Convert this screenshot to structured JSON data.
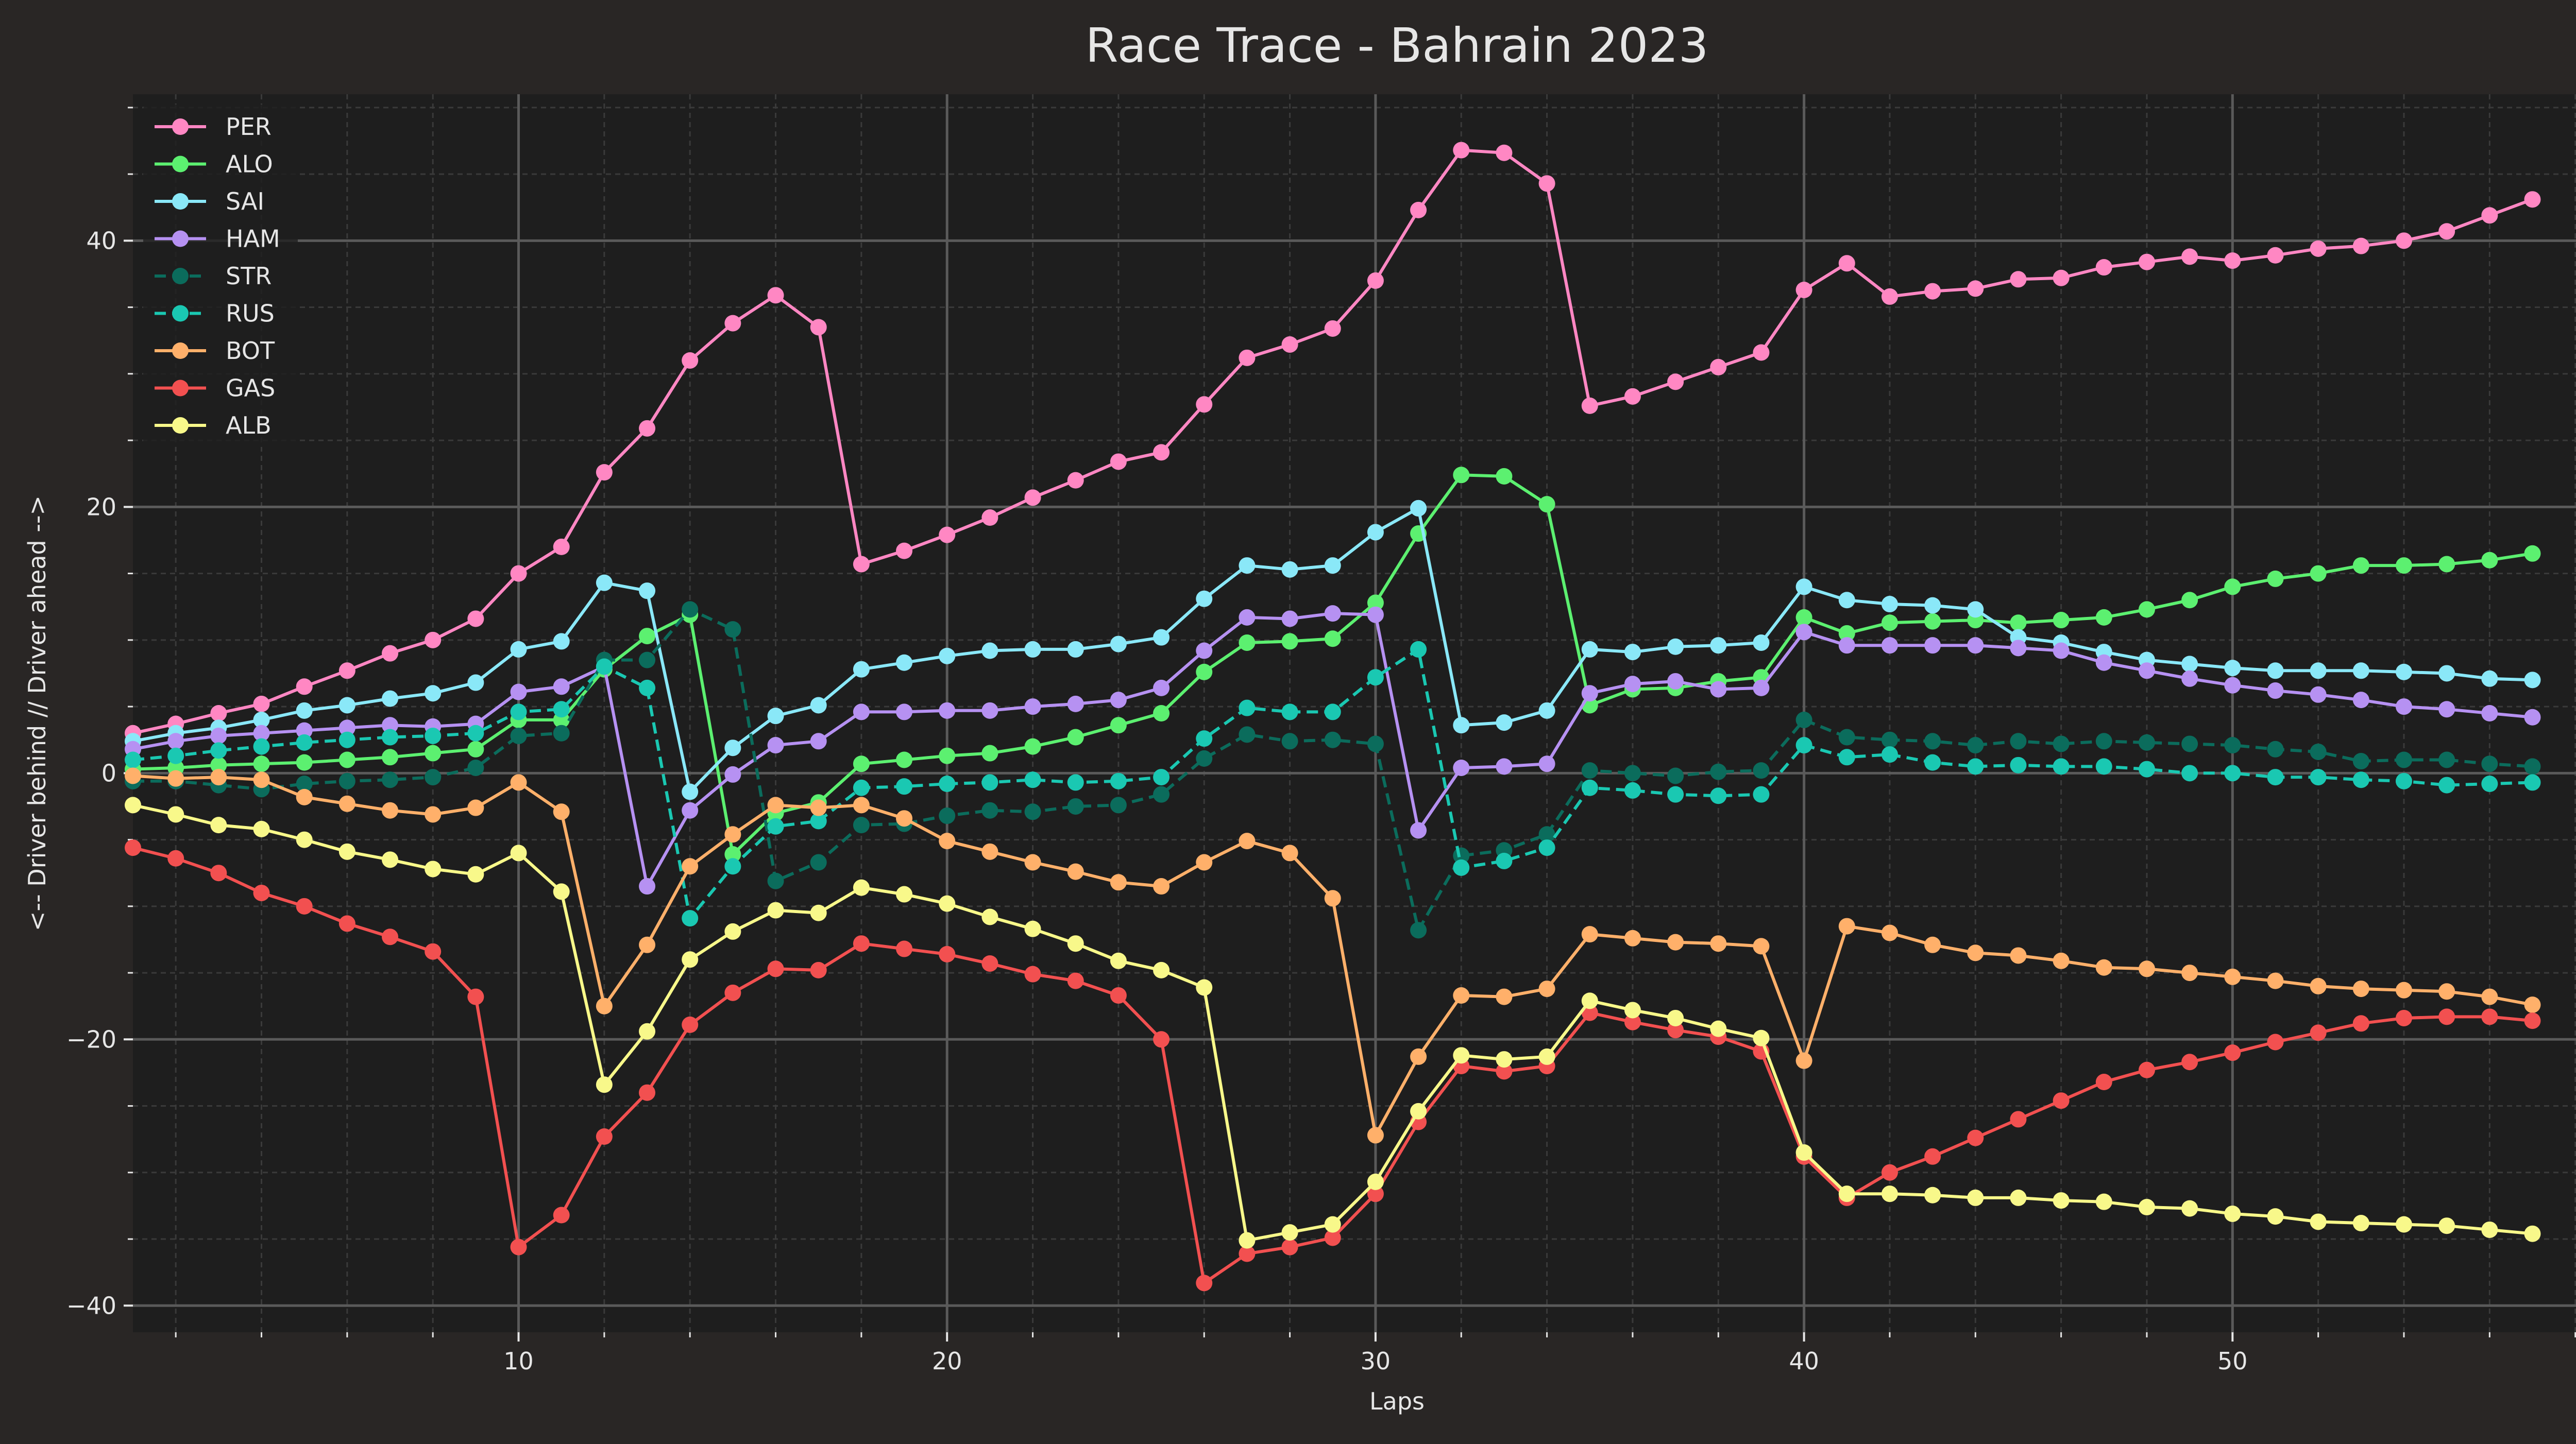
{
  "chart_data": {
    "type": "line",
    "title": "Race Trace - Bahrain 2023",
    "xlabel": "Laps",
    "ylabel": "<-- Driver behind // Driver ahead -->",
    "xlim": [
      1,
      60
    ],
    "ylim": [
      -42,
      51
    ],
    "xticks": [
      10,
      20,
      30,
      40,
      50,
      60
    ],
    "yticks": [
      -40,
      -20,
      0,
      20,
      40
    ],
    "grid": true,
    "legend_position": "top-left",
    "colors": {
      "background": "#292625",
      "plot_background": "#1e1e1e",
      "grid_major": "#5a5a5a",
      "grid_minor": "#3a3a3a",
      "text": "#e6e6e6"
    },
    "series": [
      {
        "name": "PER",
        "color": "#ff87c3",
        "style": "solid",
        "x": [
          1,
          2,
          3,
          4,
          5,
          6,
          7,
          8,
          9,
          10,
          11,
          12,
          13,
          14,
          15,
          16,
          17,
          18,
          19,
          20,
          21,
          22,
          23,
          24,
          25,
          26,
          27,
          28,
          29,
          30,
          31,
          32,
          33,
          34,
          35,
          36,
          37,
          38,
          39,
          40,
          41,
          42,
          43,
          44,
          45,
          46,
          47,
          48,
          49,
          50,
          51,
          52,
          53,
          54,
          55,
          56,
          57
        ],
        "y": [
          3.0,
          3.7,
          4.5,
          5.2,
          6.5,
          7.7,
          9.0,
          10.0,
          11.6,
          15.0,
          17.0,
          22.6,
          25.9,
          31.0,
          33.8,
          35.9,
          33.5,
          15.7,
          16.7,
          17.9,
          19.2,
          20.7,
          22.0,
          23.4,
          24.1,
          27.7,
          31.2,
          32.2,
          33.4,
          37.0,
          42.3,
          46.8,
          46.6,
          44.3,
          27.6,
          28.3,
          29.4,
          30.5,
          31.6,
          36.3,
          38.3,
          35.8,
          36.2,
          36.4,
          37.1,
          37.2,
          38.0,
          38.4,
          38.8,
          38.5,
          38.9,
          39.4,
          39.6,
          40.0,
          40.7,
          41.9,
          43.1
        ]
      },
      {
        "name": "ALO",
        "color": "#5cf070",
        "style": "solid",
        "x": [
          1,
          2,
          3,
          4,
          5,
          6,
          7,
          8,
          9,
          10,
          11,
          12,
          13,
          14,
          15,
          16,
          17,
          18,
          19,
          20,
          21,
          22,
          23,
          24,
          25,
          26,
          27,
          28,
          29,
          30,
          31,
          32,
          33,
          34,
          35,
          36,
          37,
          38,
          39,
          40,
          41,
          42,
          43,
          44,
          45,
          46,
          47,
          48,
          49,
          50,
          51,
          52,
          53,
          54,
          55,
          56,
          57
        ],
        "y": [
          0.3,
          0.4,
          0.6,
          0.7,
          0.8,
          1.0,
          1.2,
          1.5,
          1.8,
          4.0,
          4.0,
          7.8,
          10.3,
          11.9,
          -6.1,
          -3.0,
          -2.2,
          0.7,
          1.0,
          1.3,
          1.5,
          2.0,
          2.7,
          3.6,
          4.5,
          7.6,
          9.8,
          9.9,
          10.1,
          12.8,
          18.0,
          22.4,
          22.3,
          20.2,
          5.1,
          6.3,
          6.4,
          6.9,
          7.2,
          11.7,
          10.5,
          11.3,
          11.4,
          11.5,
          11.3,
          11.5,
          11.7,
          12.3,
          13.0,
          14.0,
          14.6,
          15.0,
          15.6,
          15.6,
          15.7,
          16.0,
          16.5
        ]
      },
      {
        "name": "SAI",
        "color": "#8ae8f8",
        "style": "solid",
        "x": [
          1,
          2,
          3,
          4,
          5,
          6,
          7,
          8,
          9,
          10,
          11,
          12,
          13,
          14,
          15,
          16,
          17,
          18,
          19,
          20,
          21,
          22,
          23,
          24,
          25,
          26,
          27,
          28,
          29,
          30,
          31,
          32,
          33,
          34,
          35,
          36,
          37,
          38,
          39,
          40,
          41,
          42,
          43,
          44,
          45,
          46,
          47,
          48,
          49,
          50,
          51,
          52,
          53,
          54,
          55,
          56,
          57
        ],
        "y": [
          2.4,
          3.0,
          3.4,
          4.0,
          4.7,
          5.1,
          5.6,
          6.0,
          6.8,
          9.3,
          9.9,
          14.3,
          13.7,
          -1.4,
          1.9,
          4.3,
          5.1,
          7.8,
          8.3,
          8.8,
          9.2,
          9.3,
          9.3,
          9.7,
          10.2,
          13.1,
          15.6,
          15.3,
          15.6,
          18.1,
          19.9,
          null,
          null,
          null,
          null,
          null,
          null,
          null,
          null,
          null,
          null,
          null,
          null,
          null,
          null,
          null,
          null,
          null,
          null,
          null,
          null,
          null,
          null,
          null,
          null,
          null,
          null
        ]
      },
      {
        "name": "SAI",
        "color": "#8ae8f8",
        "style": "solid",
        "x": [
          31,
          32,
          33,
          34,
          35,
          36,
          37,
          38,
          39,
          40,
          41,
          42,
          43,
          44,
          45,
          46,
          47,
          48,
          49,
          50,
          51,
          52,
          53,
          54,
          55,
          56,
          57
        ],
        "y": [
          19.9,
          3.6,
          3.8,
          4.7,
          9.3,
          9.1,
          9.5,
          9.6,
          9.8,
          14.0,
          13.0,
          12.7,
          12.6,
          12.3,
          10.2,
          9.8,
          9.1,
          8.5,
          8.2,
          7.9,
          7.7,
          7.7,
          7.7,
          7.6,
          7.5,
          7.1,
          7.0
        ]
      },
      {
        "name": "HAM",
        "color": "#b691f2",
        "style": "solid",
        "x": [
          1,
          2,
          3,
          4,
          5,
          6,
          7,
          8,
          9,
          10,
          11,
          12,
          13,
          14,
          15,
          16,
          17,
          18,
          19,
          20,
          21,
          22,
          23,
          24,
          25,
          26,
          27,
          28,
          29,
          30,
          31,
          32,
          33,
          34,
          35,
          36,
          37,
          38,
          39,
          40,
          41,
          42,
          43,
          44,
          45,
          46,
          47,
          48,
          49,
          50,
          51,
          52,
          53,
          54,
          55,
          56,
          57
        ],
        "y": [
          1.8,
          2.4,
          2.8,
          3.0,
          3.2,
          3.4,
          3.6,
          3.5,
          3.7,
          6.1,
          6.5,
          8.0,
          -8.5,
          -2.8,
          -0.1,
          2.1,
          2.4,
          4.6,
          4.6,
          4.7,
          4.7,
          5.0,
          5.2,
          5.5,
          6.4,
          9.2,
          11.7,
          11.6,
          12.0,
          11.9,
          -4.3,
          0.4,
          0.5,
          0.7,
          6.0,
          6.7,
          6.9,
          6.3,
          6.4,
          10.6,
          9.6,
          9.6,
          9.6,
          9.6,
          9.4,
          9.2,
          8.3,
          7.7,
          7.1,
          6.6,
          6.2,
          5.9,
          5.5,
          5.0,
          4.8,
          4.5,
          4.2
        ]
      },
      {
        "name": "STR",
        "color": "#0b6c5c",
        "style": "dashed",
        "x": [
          1,
          2,
          3,
          4,
          5,
          6,
          7,
          8,
          9,
          10,
          11,
          12,
          13,
          14,
          15,
          16,
          17,
          18,
          19,
          20,
          21,
          22,
          23,
          24,
          25,
          26,
          27,
          28,
          29,
          30,
          31,
          32,
          33,
          34,
          35,
          36,
          37,
          38,
          39,
          40,
          41,
          42,
          43,
          44,
          45,
          46,
          47,
          48,
          49,
          50,
          51,
          52,
          53,
          54,
          55,
          56,
          57
        ],
        "y": [
          -0.6,
          -0.6,
          -0.9,
          -1.2,
          -0.8,
          -0.6,
          -0.5,
          -0.3,
          0.4,
          2.8,
          3.0,
          8.5,
          8.5,
          12.3,
          10.8,
          -8.1,
          -6.7,
          -3.9,
          -3.8,
          -3.2,
          -2.8,
          -2.9,
          -2.5,
          -2.4,
          -1.6,
          1.1,
          2.9,
          2.4,
          2.5,
          2.2,
          -11.8,
          -6.2,
          -5.8,
          -4.6,
          0.2,
          0.0,
          -0.2,
          0.1,
          0.2,
          4.0,
          2.7,
          2.5,
          2.4,
          2.1,
          2.4,
          2.2,
          2.4,
          2.3,
          2.2,
          2.1,
          1.8,
          1.6,
          0.9,
          1.0,
          1.0,
          0.7,
          0.5
        ]
      },
      {
        "name": "RUS",
        "color": "#1ac8b2",
        "style": "dashed",
        "x": [
          1,
          2,
          3,
          4,
          5,
          6,
          7,
          8,
          9,
          10,
          11,
          12,
          13,
          14,
          15,
          16,
          17,
          18,
          19,
          20,
          21,
          22,
          23,
          24,
          25,
          26,
          27,
          28,
          29,
          30,
          31,
          32,
          33,
          34,
          35,
          36,
          37,
          38,
          39,
          40,
          41,
          42,
          43,
          44,
          45,
          46,
          47,
          48,
          49,
          50,
          51,
          52,
          53,
          54,
          55,
          56,
          57
        ],
        "y": [
          1.0,
          1.3,
          1.7,
          2.0,
          2.3,
          2.5,
          2.7,
          2.8,
          3.0,
          4.6,
          4.8,
          8.0,
          6.4,
          -10.9,
          -7.0,
          -4.0,
          -3.6,
          -1.1,
          -1.0,
          -0.8,
          -0.7,
          -0.5,
          -0.7,
          -0.6,
          -0.3,
          2.6,
          4.9,
          4.6,
          4.6,
          7.2,
          9.3,
          -7.1,
          -6.6,
          -5.6,
          -1.1,
          -1.3,
          -1.6,
          -1.7,
          -1.6,
          2.1,
          1.2,
          1.4,
          0.8,
          0.5,
          0.6,
          0.5,
          0.5,
          0.3,
          0.0,
          0.0,
          -0.3,
          -0.3,
          -0.5,
          -0.6,
          -0.9,
          -0.8,
          -0.7
        ]
      },
      {
        "name": "BOT",
        "color": "#ffb06a",
        "style": "solid",
        "x": [
          1,
          2,
          3,
          4,
          5,
          6,
          7,
          8,
          9,
          10,
          11,
          12,
          13,
          14,
          15,
          16,
          17,
          18,
          19,
          20,
          21,
          22,
          23,
          24,
          25,
          26,
          27,
          28,
          29,
          30,
          31,
          32,
          33,
          34,
          35,
          36,
          37,
          38,
          39,
          40,
          41,
          42,
          43,
          44,
          45,
          46,
          47,
          48,
          49,
          50,
          51,
          52,
          53,
          54,
          55,
          56,
          57
        ],
        "y": [
          -0.2,
          -0.4,
          -0.3,
          -0.5,
          -1.8,
          -2.3,
          -2.8,
          -3.1,
          -2.6,
          -0.7,
          -2.9,
          -17.5,
          -12.9,
          -7.0,
          -4.6,
          -2.4,
          -2.6,
          -2.4,
          -3.4,
          -5.1,
          -5.9,
          -6.7,
          -7.4,
          -8.2,
          -8.5,
          -6.7,
          -5.1,
          -6.0,
          -9.4,
          -27.2,
          -21.3,
          -16.7,
          -16.8,
          -16.2,
          -12.1,
          -12.4,
          -12.7,
          -12.8,
          -13.0,
          -21.6,
          -11.5,
          -12.0,
          -12.9,
          -13.5,
          -13.7,
          -14.1,
          -14.6,
          -14.7,
          -15.0,
          -15.3,
          -15.6,
          -16.0,
          -16.2,
          -16.3,
          -16.4,
          -16.8,
          -17.4
        ]
      },
      {
        "name": "GAS",
        "color": "#f25050",
        "style": "solid",
        "x": [
          1,
          2,
          3,
          4,
          5,
          6,
          7,
          8,
          9,
          10,
          11,
          12,
          13,
          14,
          15,
          16,
          17,
          18,
          19,
          20,
          21,
          22,
          23,
          24,
          25,
          26,
          27,
          28,
          29,
          30,
          31,
          32,
          33,
          34,
          35,
          36,
          37,
          38,
          39,
          40,
          41,
          42,
          43,
          44,
          45,
          46,
          47,
          48,
          49,
          50,
          51,
          52,
          53,
          54,
          55,
          56,
          57
        ],
        "y": [
          -5.6,
          -6.4,
          -7.5,
          -9.0,
          -10.0,
          -11.3,
          -12.3,
          -13.4,
          -16.8,
          -35.6,
          -33.2,
          -27.3,
          -24.0,
          -18.9,
          -16.5,
          -14.7,
          -14.8,
          -12.8,
          -13.2,
          -13.6,
          -14.3,
          -15.1,
          -15.6,
          -16.7,
          -20.0,
          -38.3,
          -36.1,
          -35.6,
          -34.9,
          -31.6,
          -26.2,
          -22.0,
          -22.4,
          -22.0,
          -18.0,
          -18.7,
          -19.3,
          -19.8,
          -20.9,
          -28.8,
          -31.9,
          -30.0,
          -28.8,
          -27.4,
          -26.0,
          -24.6,
          -23.2,
          -22.3,
          -21.7,
          -21.0,
          -20.2,
          -19.5,
          -18.8,
          -18.4,
          -18.3,
          -18.3,
          -18.6
        ]
      },
      {
        "name": "ALB",
        "color": "#f8f88a",
        "style": "solid",
        "x": [
          1,
          2,
          3,
          4,
          5,
          6,
          7,
          8,
          9,
          10,
          11,
          12,
          13,
          14,
          15,
          16,
          17,
          18,
          19,
          20,
          21,
          22,
          23,
          24,
          25,
          26,
          27,
          28,
          29,
          30,
          31,
          32,
          33,
          34,
          35,
          36,
          37,
          38,
          39,
          40,
          41,
          42,
          43,
          44,
          45,
          46,
          47,
          48,
          49,
          50,
          51,
          52,
          53,
          54,
          55,
          56,
          57
        ],
        "y": [
          -2.4,
          -3.1,
          -3.9,
          -4.2,
          -5.0,
          -5.9,
          -6.5,
          -7.2,
          -7.6,
          -6.0,
          -8.9,
          -23.4,
          -19.4,
          -14.0,
          -11.9,
          -10.3,
          -10.5,
          -8.6,
          -9.1,
          -9.8,
          -10.8,
          -11.7,
          -12.8,
          -14.1,
          -14.8,
          -16.1,
          -35.1,
          -34.5,
          -33.9,
          -30.7,
          -25.4,
          -21.2,
          -21.5,
          -21.3,
          -17.1,
          -17.8,
          -18.4,
          -19.2,
          -19.9,
          -28.5,
          -31.6,
          -31.6,
          -31.7,
          -31.9,
          -31.9,
          -32.1,
          -32.2,
          -32.6,
          -32.7,
          -33.1,
          -33.3,
          -33.7,
          -33.8,
          -33.9,
          -34.0,
          -34.3,
          -34.6
        ]
      }
    ],
    "legend": [
      "PER",
      "ALO",
      "SAI",
      "HAM",
      "STR",
      "RUS",
      "BOT",
      "GAS",
      "ALB"
    ]
  }
}
